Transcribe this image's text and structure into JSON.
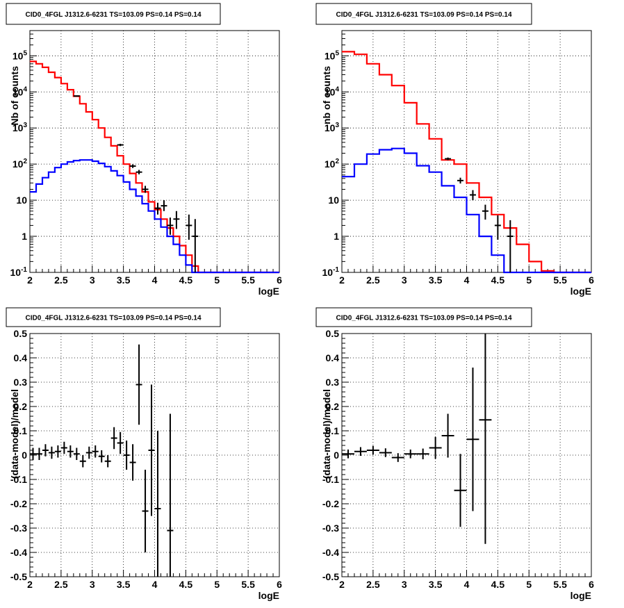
{
  "chart_data": [
    {
      "type": "line",
      "title": "CID0_4FGL J1312.6-6231 TS=103.09 PS=0.14 PS=0.14",
      "xlabel": "logE",
      "ylabel": "Nb of counts",
      "xlim": [
        2,
        6
      ],
      "ylim": [
        0.1,
        500000
      ],
      "log_y": true,
      "grid": true,
      "x_ticks": [
        "2",
        "2.5",
        "3",
        "3.5",
        "4",
        "4.5",
        "5",
        "5.5",
        "6"
      ],
      "y_ticks": [
        "10^-1",
        "1",
        "10",
        "10^2",
        "10^3",
        "10^4",
        "10^5"
      ],
      "series": [
        {
          "style": "step",
          "color": "#ff0000",
          "edges": [
            2.0,
            2.1,
            2.2,
            2.3,
            2.4,
            2.5,
            2.6,
            2.7,
            2.8,
            2.9,
            3.0,
            3.1,
            3.2,
            3.3,
            3.4,
            3.5,
            3.6,
            3.7,
            3.8,
            3.9,
            4.0,
            4.1,
            4.2,
            4.3,
            4.4,
            4.5,
            4.6,
            4.7,
            4.8,
            4.9,
            5.0,
            5.1,
            5.2,
            5.3,
            5.4,
            5.5,
            5.6,
            5.7,
            5.8,
            5.9,
            6.0
          ],
          "values": [
            70000,
            60000,
            48000,
            35000,
            25000,
            17000,
            11500,
            7600,
            4700,
            2800,
            1700,
            1000,
            550,
            320,
            170,
            100,
            55,
            30,
            17,
            9,
            5.5,
            3,
            1.7,
            1,
            0.55,
            0.3,
            0.15,
            0.1,
            0.1,
            0.1,
            0.1,
            0.1,
            0.1,
            0.1,
            0.1,
            0.1,
            0.1,
            0.1,
            0.1,
            0.1
          ]
        },
        {
          "style": "step",
          "color": "#0000ff",
          "edges": [
            2.0,
            2.1,
            2.2,
            2.3,
            2.4,
            2.5,
            2.6,
            2.7,
            2.8,
            2.9,
            3.0,
            3.1,
            3.2,
            3.3,
            3.4,
            3.5,
            3.6,
            3.7,
            3.8,
            3.9,
            4.0,
            4.1,
            4.2,
            4.3,
            4.4,
            4.5,
            4.6,
            4.7,
            4.8,
            4.9,
            5.0,
            5.1,
            5.2,
            5.3,
            5.4,
            5.5,
            5.6,
            5.7,
            5.8,
            5.9,
            6.0
          ],
          "values": [
            17,
            28,
            42,
            60,
            80,
            100,
            115,
            125,
            130,
            130,
            120,
            105,
            85,
            65,
            48,
            32,
            20,
            13,
            8,
            5,
            3,
            1.8,
            1,
            0.6,
            0.3,
            0.16,
            0.1,
            0.1,
            0.1,
            0.1,
            0.1,
            0.1,
            0.1,
            0.1,
            0.1,
            0.1,
            0.1,
            0.1,
            0.1,
            0.1
          ]
        },
        {
          "style": "errorbars",
          "color": "#000000",
          "points": [
            {
              "x": 2.75,
              "y": 7700,
              "ylo": 7580,
              "yhi": 7820
            },
            {
              "x": 3.45,
              "y": 340,
              "ylo": 315,
              "yhi": 365
            },
            {
              "x": 3.65,
              "y": 88,
              "ylo": 78,
              "yhi": 98
            },
            {
              "x": 3.75,
              "y": 60,
              "ylo": 52,
              "yhi": 69
            },
            {
              "x": 3.85,
              "y": 20,
              "ylo": 16,
              "yhi": 25
            },
            {
              "x": 4.05,
              "y": 6,
              "ylo": 4,
              "yhi": 8.5
            },
            {
              "x": 4.15,
              "y": 7,
              "ylo": 5,
              "yhi": 10
            },
            {
              "x": 4.25,
              "y": 2,
              "ylo": 1.1,
              "yhi": 3.3
            },
            {
              "x": 4.35,
              "y": 3,
              "ylo": 1.6,
              "yhi": 5
            },
            {
              "x": 4.55,
              "y": 2,
              "ylo": 0.8,
              "yhi": 4
            },
            {
              "x": 4.65,
              "y": 1,
              "ylo": 0.1,
              "yhi": 3
            }
          ]
        }
      ]
    },
    {
      "type": "line",
      "title": "CID0_4FGL J1312.6-6231 TS=103.09 PS=0.14 PS=0.14",
      "xlabel": "logE",
      "ylabel": "nb of counts",
      "xlim": [
        2,
        6
      ],
      "ylim": [
        0.1,
        500000
      ],
      "log_y": true,
      "grid": true,
      "x_ticks": [
        "2",
        "2.5",
        "3",
        "3.5",
        "4",
        "4.5",
        "5",
        "5.5",
        "6"
      ],
      "y_ticks": [
        "10^-1",
        "1",
        "10",
        "10^2",
        "10^3",
        "10^4",
        "10^5"
      ],
      "series": [
        {
          "style": "step",
          "color": "#ff0000",
          "edges": [
            2.0,
            2.2,
            2.4,
            2.6,
            2.8,
            3.0,
            3.2,
            3.4,
            3.6,
            3.8,
            4.0,
            4.2,
            4.4,
            4.6,
            4.8,
            5.0,
            5.2,
            5.4,
            5.6,
            5.8,
            6.0
          ],
          "values": [
            130000,
            110000,
            60000,
            30000,
            15000,
            5000,
            1300,
            500,
            130,
            100,
            30,
            12,
            4,
            1.7,
            0.6,
            0.2,
            0.11,
            0.1,
            0.1,
            0.1
          ]
        },
        {
          "style": "step",
          "color": "#0000ff",
          "edges": [
            2.0,
            2.2,
            2.4,
            2.6,
            2.8,
            3.0,
            3.2,
            3.4,
            3.6,
            3.8,
            4.0,
            4.2,
            4.4,
            4.6,
            4.8,
            5.0,
            5.2,
            5.4,
            5.6,
            5.8,
            6.0
          ],
          "values": [
            45,
            100,
            190,
            250,
            270,
            200,
            90,
            60,
            25,
            12,
            4,
            1,
            0.3,
            0.1,
            0.1,
            0.1,
            0.1,
            0.1,
            0.1,
            0.1
          ]
        },
        {
          "style": "errorbars",
          "color": "#000000",
          "points": [
            {
              "x": 3.7,
              "y": 140,
              "ylo": 128,
              "yhi": 152
            },
            {
              "x": 3.9,
              "y": 35,
              "ylo": 29,
              "yhi": 42
            },
            {
              "x": 4.1,
              "y": 14,
              "ylo": 10,
              "yhi": 19
            },
            {
              "x": 4.3,
              "y": 5,
              "ylo": 2.9,
              "yhi": 7.5
            },
            {
              "x": 4.5,
              "y": 2,
              "ylo": 0.8,
              "yhi": 3.8
            },
            {
              "x": 4.7,
              "y": 1,
              "ylo": 0.1,
              "yhi": 2.8
            }
          ]
        }
      ]
    },
    {
      "type": "scatter",
      "title": "CID0_4FGL J1312.6-6231 TS=103.09 PS=0.14 PS=0.14",
      "xlabel": "logE",
      "ylabel": "(data-model)/model",
      "xlim": [
        2,
        6
      ],
      "ylim": [
        -0.5,
        0.5
      ],
      "log_y": false,
      "grid": true,
      "x_ticks": [
        "2",
        "2.5",
        "3",
        "3.5",
        "4",
        "4.5",
        "5",
        "5.5",
        "6"
      ],
      "y_ticks": [
        "-0.5",
        "-0.4",
        "-0.3",
        "-0.2",
        "-0.1",
        "0",
        "0.1",
        "0.2",
        "0.3",
        "0.4",
        "0.5"
      ],
      "xerr": 0.05,
      "points": [
        {
          "x": 2.05,
          "y": 0.005,
          "err": 0.025
        },
        {
          "x": 2.15,
          "y": 0.005,
          "err": 0.025
        },
        {
          "x": 2.25,
          "y": 0.02,
          "err": 0.025
        },
        {
          "x": 2.35,
          "y": 0.01,
          "err": 0.025
        },
        {
          "x": 2.45,
          "y": 0.015,
          "err": 0.025
        },
        {
          "x": 2.55,
          "y": 0.03,
          "err": 0.025
        },
        {
          "x": 2.65,
          "y": 0.015,
          "err": 0.025
        },
        {
          "x": 2.75,
          "y": 0.005,
          "err": 0.025
        },
        {
          "x": 2.85,
          "y": -0.025,
          "err": 0.025
        },
        {
          "x": 2.95,
          "y": 0.01,
          "err": 0.025
        },
        {
          "x": 3.05,
          "y": 0.015,
          "err": 0.025
        },
        {
          "x": 3.15,
          "y": -0.005,
          "err": 0.025
        },
        {
          "x": 3.25,
          "y": -0.025,
          "err": 0.025
        },
        {
          "x": 3.35,
          "y": 0.07,
          "err": 0.045
        },
        {
          "x": 3.45,
          "y": 0.05,
          "err": 0.045
        },
        {
          "x": 3.55,
          "y": 0.0,
          "err": 0.06
        },
        {
          "x": 3.65,
          "y": -0.03,
          "err": 0.075
        },
        {
          "x": 3.75,
          "y": 0.29,
          "err": 0.165
        },
        {
          "x": 3.85,
          "y": -0.23,
          "err": 0.17
        },
        {
          "x": 3.95,
          "y": 0.02,
          "err": 0.27
        },
        {
          "x": 4.05,
          "y": -0.22,
          "err": 0.32
        },
        {
          "x": 4.25,
          "y": -0.31,
          "err": 0.48
        }
      ]
    },
    {
      "type": "scatter",
      "title": "CID0_4FGL J1312.6-6231 TS=103.09 PS=0.14 PS=0.14",
      "xlabel": "logE",
      "ylabel": "(data-model)/model",
      "xlim": [
        2,
        6
      ],
      "ylim": [
        -0.5,
        0.5
      ],
      "log_y": false,
      "grid": true,
      "x_ticks": [
        "2",
        "2.5",
        "3",
        "3.5",
        "4",
        "4.5",
        "5",
        "5.5",
        "6"
      ],
      "y_ticks": [
        "-0.5",
        "-0.4",
        "-0.3",
        "-0.2",
        "-0.1",
        "0",
        "0.1",
        "0.2",
        "0.3",
        "0.4",
        "0.5"
      ],
      "xerr": 0.1,
      "points": [
        {
          "x": 2.1,
          "y": 0.005,
          "err": 0.018
        },
        {
          "x": 2.3,
          "y": 0.015,
          "err": 0.018
        },
        {
          "x": 2.5,
          "y": 0.02,
          "err": 0.018
        },
        {
          "x": 2.7,
          "y": 0.01,
          "err": 0.018
        },
        {
          "x": 2.9,
          "y": -0.01,
          "err": 0.018
        },
        {
          "x": 3.1,
          "y": 0.005,
          "err": 0.018
        },
        {
          "x": 3.3,
          "y": 0.005,
          "err": 0.022
        },
        {
          "x": 3.5,
          "y": 0.03,
          "err": 0.045
        },
        {
          "x": 3.7,
          "y": 0.08,
          "err": 0.09
        },
        {
          "x": 3.9,
          "y": -0.145,
          "err": 0.15
        },
        {
          "x": 4.1,
          "y": 0.065,
          "err": 0.295
        },
        {
          "x": 4.3,
          "y": 0.145,
          "err": 0.51
        }
      ]
    }
  ]
}
